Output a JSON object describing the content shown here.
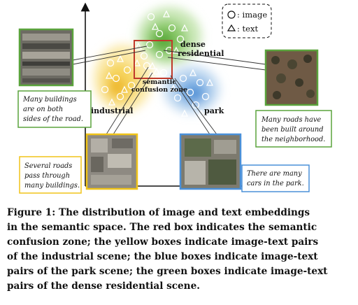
{
  "legend": {
    "image_label": ": image",
    "text_label": ": text"
  },
  "clusters": {
    "dense_residential": {
      "label_line1": "dense",
      "label_line2": "residential",
      "color": "#5cb85c"
    },
    "industrial": {
      "label": "industrial",
      "color": "#f0c419"
    },
    "park": {
      "label": "park",
      "color": "#4a90d9"
    }
  },
  "confusion_zone": {
    "line1": "semantic",
    "line2": "confusion zone",
    "color": "#c0392b"
  },
  "text_boxes": {
    "top_left": {
      "lines": [
        "Many buildings",
        "are on both",
        "sides of the road."
      ],
      "border": "#5aa33c"
    },
    "right": {
      "lines": [
        "Many roads have",
        "been built around",
        "the neighborhood."
      ],
      "border": "#5aa33c"
    },
    "bottom_left": {
      "lines": [
        "Several roads",
        "pass through",
        "many buildings."
      ],
      "border": "#f0c419"
    },
    "bottom_right": {
      "lines": [
        "There are many",
        "cars in the park."
      ],
      "border": "#4a90d9"
    }
  },
  "caption_lines": [
    "Figure 1: The distribution of image and text embeddings",
    "in the semantic space. The red box indicates the semantic",
    "confusion zone; the yellow boxes indicate image-text pairs",
    "of the industrial scene; the blue boxes indicate image-text",
    "pairs of the park scene; the green boxes indicate image-text",
    "pairs of the dense residential scene."
  ]
}
